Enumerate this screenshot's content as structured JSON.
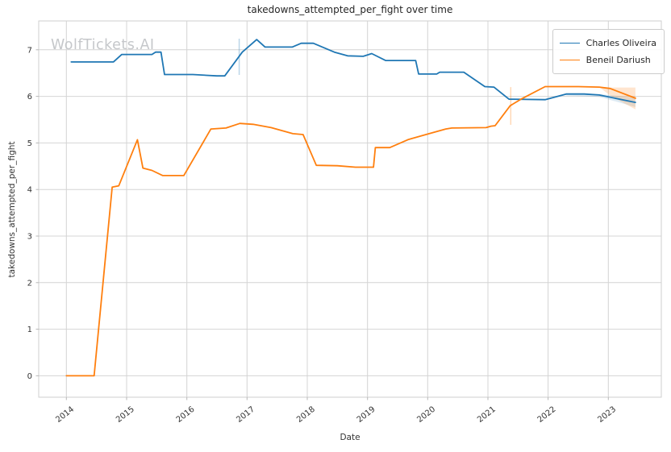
{
  "watermark": "WolfTickets.AI",
  "chart_data": {
    "type": "line",
    "title": "takedowns_attempted_per_fight over time",
    "xlabel": "Date",
    "ylabel": "takedowns_attempted_per_fight",
    "grid": true,
    "legend_position": "upper right",
    "x_domain": [
      2013.54,
      2023.88
    ],
    "y_domain": [
      -0.46,
      7.62
    ],
    "x_ticks": [
      2014,
      2015,
      2016,
      2017,
      2018,
      2019,
      2020,
      2021,
      2022,
      2023
    ],
    "y_ticks": [
      0,
      1,
      2,
      3,
      4,
      5,
      6,
      7
    ],
    "grid_color": "#d4d4d4",
    "spine_color": "#cfcfcf",
    "tick_color": "#b7b7b7",
    "tick_label_color": "#333333",
    "series": [
      {
        "name": "Charles Oliveira",
        "color": "#1f77b4",
        "points": [
          [
            2014.08,
            6.74
          ],
          [
            2014.78,
            6.74
          ],
          [
            2014.92,
            6.9
          ],
          [
            2015.42,
            6.9
          ],
          [
            2015.48,
            6.95
          ],
          [
            2015.57,
            6.95
          ],
          [
            2015.63,
            6.47
          ],
          [
            2016.1,
            6.47
          ],
          [
            2016.5,
            6.44
          ],
          [
            2016.63,
            6.44
          ],
          [
            2016.92,
            6.95
          ],
          [
            2017.16,
            7.22
          ],
          [
            2017.3,
            7.06
          ],
          [
            2017.75,
            7.06
          ],
          [
            2017.9,
            7.14
          ],
          [
            2018.1,
            7.14
          ],
          [
            2018.45,
            6.95
          ],
          [
            2018.67,
            6.87
          ],
          [
            2018.93,
            6.86
          ],
          [
            2019.07,
            6.92
          ],
          [
            2019.3,
            6.77
          ],
          [
            2019.8,
            6.77
          ],
          [
            2019.85,
            6.48
          ],
          [
            2020.15,
            6.48
          ],
          [
            2020.2,
            6.52
          ],
          [
            2020.6,
            6.52
          ],
          [
            2020.95,
            6.21
          ],
          [
            2021.1,
            6.2
          ],
          [
            2021.35,
            5.94
          ],
          [
            2021.95,
            5.93
          ],
          [
            2022.3,
            6.05
          ],
          [
            2022.6,
            6.05
          ],
          [
            2022.85,
            6.03
          ],
          [
            2023.45,
            5.87
          ]
        ]
      },
      {
        "name": "Beneil Dariush",
        "color": "#ff7f0e",
        "points": [
          [
            2014.0,
            0.0
          ],
          [
            2014.46,
            0.0
          ],
          [
            2014.76,
            4.05
          ],
          [
            2014.87,
            4.08
          ],
          [
            2015.18,
            5.07
          ],
          [
            2015.27,
            4.46
          ],
          [
            2015.42,
            4.41
          ],
          [
            2015.6,
            4.3
          ],
          [
            2015.95,
            4.3
          ],
          [
            2016.4,
            5.3
          ],
          [
            2016.65,
            5.32
          ],
          [
            2016.88,
            5.42
          ],
          [
            2017.1,
            5.4
          ],
          [
            2017.4,
            5.33
          ],
          [
            2017.76,
            5.2
          ],
          [
            2017.93,
            5.18
          ],
          [
            2018.15,
            4.52
          ],
          [
            2018.5,
            4.51
          ],
          [
            2018.8,
            4.48
          ],
          [
            2019.1,
            4.48
          ],
          [
            2019.13,
            4.9
          ],
          [
            2019.37,
            4.9
          ],
          [
            2019.67,
            5.07
          ],
          [
            2020.0,
            5.19
          ],
          [
            2020.3,
            5.3
          ],
          [
            2020.4,
            5.32
          ],
          [
            2020.97,
            5.33
          ],
          [
            2021.05,
            5.36
          ],
          [
            2021.12,
            5.37
          ],
          [
            2021.37,
            5.8
          ],
          [
            2021.55,
            5.94
          ],
          [
            2021.95,
            6.21
          ],
          [
            2022.5,
            6.21
          ],
          [
            2022.85,
            6.2
          ],
          [
            2023.03,
            6.17
          ],
          [
            2023.45,
            5.96
          ]
        ]
      }
    ],
    "error_bars": [
      {
        "series": "Charles Oliveira",
        "color": "#1f77b4",
        "opacity": 0.3,
        "x": 2016.87,
        "y_low": 6.46,
        "y_high": 7.24
      },
      {
        "series": "Beneil Dariush",
        "color": "#ff7f0e",
        "opacity": 0.3,
        "x": 2021.38,
        "y_low": 5.39,
        "y_high": 6.2
      }
    ],
    "confidence_bands": [
      {
        "series": "Charles Oliveira",
        "color": "#1f77b4",
        "opacity": 0.15,
        "upper": [
          [
            2022.3,
            6.06
          ],
          [
            2022.85,
            6.05
          ],
          [
            2023.45,
            5.97
          ]
        ],
        "lower": [
          [
            2022.3,
            6.02
          ],
          [
            2022.85,
            5.99
          ],
          [
            2023.45,
            5.77
          ]
        ]
      },
      {
        "series": "Beneil Dariush",
        "color": "#ff7f0e",
        "opacity": 0.2,
        "upper": [
          [
            2022.85,
            6.2
          ],
          [
            2023.03,
            6.19
          ],
          [
            2023.45,
            6.19
          ]
        ],
        "lower": [
          [
            2022.85,
            6.2
          ],
          [
            2023.03,
            6.02
          ],
          [
            2023.45,
            5.72
          ]
        ]
      }
    ]
  }
}
